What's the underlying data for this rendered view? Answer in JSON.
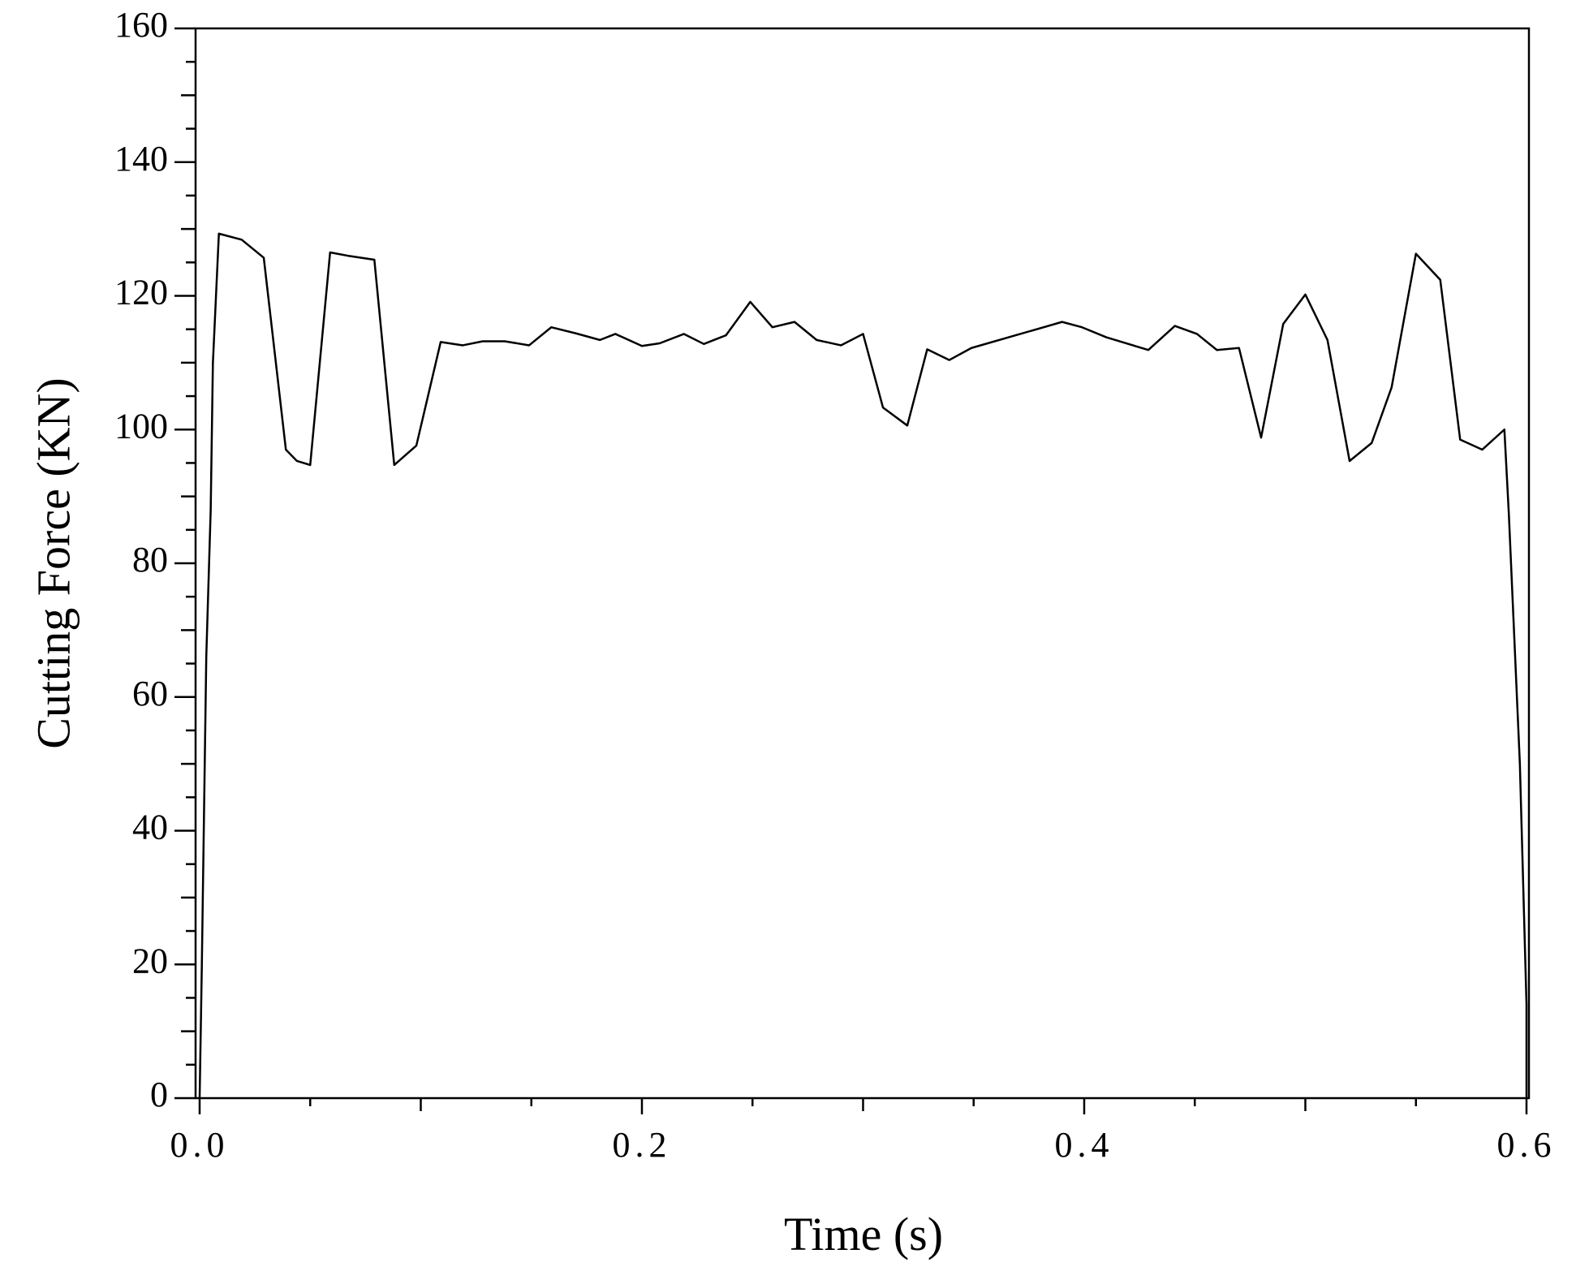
{
  "chart_data": {
    "type": "line",
    "xlabel": "Time (s)",
    "ylabel": "Cutting Force (KN)",
    "xlim": [
      0,
      0.6
    ],
    "ylim": [
      0,
      160
    ],
    "xticks": [
      {
        "value": 0,
        "label": "0.0"
      },
      0.2,
      0.4,
      0.6
    ],
    "yticks": [
      0,
      20,
      40,
      60,
      80,
      100,
      120,
      140,
      160
    ],
    "grid": false,
    "series": [
      {
        "name": null,
        "color": "#000000",
        "x": [
          0,
          0.001,
          0.002,
          0.003,
          0.005,
          0.006,
          0.0087,
          0.019,
          0.029,
          0.039,
          0.044,
          0.05,
          0.059,
          0.067,
          0.079,
          0.088,
          0.098,
          0.109,
          0.119,
          0.128,
          0.138,
          0.149,
          0.159,
          0.17,
          0.181,
          0.188,
          0.2,
          0.208,
          0.219,
          0.228,
          0.238,
          0.249,
          0.259,
          0.269,
          0.279,
          0.29,
          0.3,
          0.309,
          0.32,
          0.329,
          0.339,
          0.349,
          0.369,
          0.39,
          0.399,
          0.41,
          0.429,
          0.441,
          0.451,
          0.46,
          0.47,
          0.48,
          0.49,
          0.5,
          0.51,
          0.52,
          0.53,
          0.539,
          0.55,
          0.561,
          0.57,
          0.58,
          0.59,
          0.592,
          0.597,
          0.6,
          0.6
        ],
        "values": [
          0,
          20,
          43,
          66,
          88,
          110,
          129.3,
          128.4,
          125.7,
          97,
          95.3,
          94.7,
          126.5,
          126,
          125.4,
          94.7,
          97.6,
          113.1,
          112.6,
          113.2,
          113.2,
          112.6,
          115.3,
          114.4,
          113.4,
          114.3,
          112.5,
          112.9,
          114.3,
          112.8,
          114.1,
          119.1,
          115.3,
          116.1,
          113.4,
          112.6,
          114.3,
          103.3,
          100.6,
          112,
          110.4,
          112.2,
          114.1,
          116.1,
          115.3,
          113.8,
          111.9,
          115.5,
          114.3,
          111.9,
          112.2,
          98.8,
          115.8,
          120.2,
          113.4,
          95.3,
          98,
          106.3,
          126.3,
          122.4,
          98.5,
          97,
          100,
          87.5,
          50,
          14,
          0
        ]
      }
    ]
  }
}
